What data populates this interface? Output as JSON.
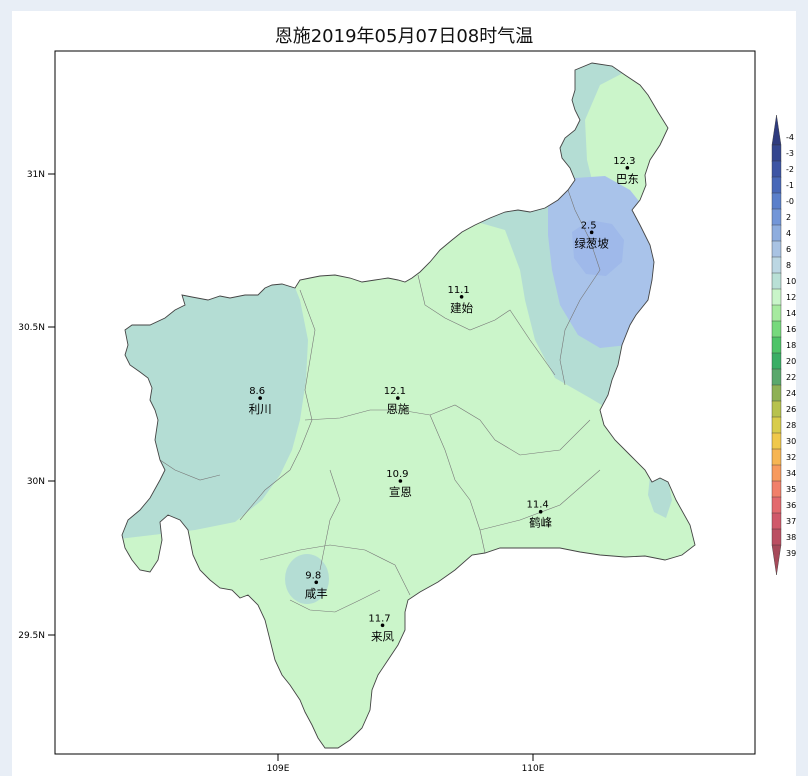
{
  "title": "恩施2019年05月07日08时气温",
  "axes": {
    "y_ticks": [
      "31N",
      "30.5N",
      "30N",
      "29.5N"
    ],
    "x_ticks": [
      "109E",
      "110E"
    ]
  },
  "stations": [
    {
      "name": "巴东",
      "value": "12.3",
      "lon": 110.37,
      "lat": 31.02
    },
    {
      "name": "绿葱坡",
      "value": "2.5",
      "lon": 110.23,
      "lat": 30.81
    },
    {
      "name": "建始",
      "value": "11.1",
      "lon": 109.72,
      "lat": 30.6
    },
    {
      "name": "利川",
      "value": "8.6",
      "lon": 108.93,
      "lat": 30.27
    },
    {
      "name": "恩施",
      "value": "12.1",
      "lon": 109.47,
      "lat": 30.27
    },
    {
      "name": "宣恩",
      "value": "10.9",
      "lon": 109.48,
      "lat": 30.0
    },
    {
      "name": "鹤峰",
      "value": "11.4",
      "lon": 110.03,
      "lat": 29.9
    },
    {
      "name": "咸丰",
      "value": "9.8",
      "lon": 109.15,
      "lat": 29.67
    },
    {
      "name": "来凤",
      "value": "11.7",
      "lon": 109.41,
      "lat": 29.53
    }
  ],
  "colorbar": {
    "labels": [
      "-4",
      "-3",
      "-2",
      "-1",
      "-0",
      "2",
      "4",
      "6",
      "8",
      "10",
      "12",
      "14",
      "16",
      "18",
      "20",
      "22",
      "24",
      "26",
      "28",
      "30",
      "32",
      "34",
      "35",
      "36",
      "37",
      "38",
      "39"
    ],
    "colors": [
      "#2f3b7e",
      "#34468f",
      "#3d55a4",
      "#4868b8",
      "#5a7fcb",
      "#7396d8",
      "#8eadde",
      "#a9c3e3",
      "#bcd7e3",
      "#b9e0d6",
      "#c9f5c9",
      "#a6ea9f",
      "#77d97d",
      "#4ec468",
      "#3aae65",
      "#5aa86c",
      "#8eb155",
      "#b7c24d",
      "#d8cc4b",
      "#f0c84b",
      "#f6b552",
      "#f79a5d",
      "#f1806a",
      "#e36a6e",
      "#d0596a",
      "#bb4f62",
      "#a64a5a"
    ]
  },
  "colors": {
    "cold_region": "#b4ddd4",
    "mild_region": "#cbf5ca",
    "very_cold_region": "#a9c3ea",
    "boundary": "#555555"
  }
}
